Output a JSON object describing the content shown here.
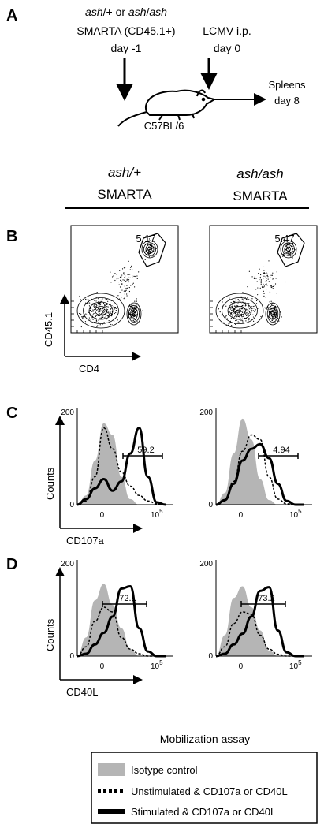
{
  "panel_letters": {
    "a": "A",
    "b": "B",
    "c": "C",
    "d": "D"
  },
  "schematic": {
    "donor_prefix_1": "ash",
    "donor_prefix_2": "/+ or ",
    "donor_prefix_3": "ash",
    "donor_prefix_4": "/",
    "donor_prefix_5": "ash",
    "donor_line2": "SMARTA (CD45.1+)",
    "donor_line3": "day -1",
    "infection_line1": "LCMV i.p.",
    "infection_line2": "day 0",
    "mouse_strain": "C57BL/6",
    "readout_line1": "Spleens",
    "readout_line2": "day 8"
  },
  "columns": [
    {
      "genotype": "ash/+",
      "cell": "SMARTA"
    },
    {
      "genotype": "ash/ash",
      "cell": "SMARTA"
    }
  ],
  "panel_b": {
    "x_axis_label": "CD4",
    "y_axis_label": "CD45.1",
    "gate_values": [
      "5.17",
      "5.47"
    ]
  },
  "panel_c": {
    "x_axis_label": "CD107a",
    "y_axis_label": "Counts",
    "y_tick_top": "200",
    "y_tick_bottom": "0",
    "x_tick_left": "0",
    "x_tick_right": "10",
    "x_tick_right_exp": "5",
    "gate_values": [
      "59.2",
      "4.94"
    ]
  },
  "panel_d": {
    "x_axis_label": "CD40L",
    "y_axis_label": "Counts",
    "y_tick_top": "200",
    "y_tick_bottom": "0",
    "x_tick_left": "0",
    "x_tick_right": "10",
    "x_tick_right_exp": "5",
    "gate_values": [
      "72.1",
      "73.2"
    ]
  },
  "legend": {
    "title": "Mobilization assay",
    "items": [
      {
        "label": "Isotype control",
        "style": "filled",
        "color": "#b5b5b5"
      },
      {
        "label": "Unstimulated & CD107a or CD40L",
        "style": "dashed",
        "color": "#000000"
      },
      {
        "label": "Stimulated & CD107a or CD40L",
        "style": "thick",
        "color": "#000000"
      }
    ]
  },
  "chart_data": [
    {
      "type": "scatter",
      "panel": "B (ash/+ SMARTA)",
      "xlabel": "CD4",
      "ylabel": "CD45.1",
      "annotations": [
        "5.17"
      ],
      "gated_percent": 5.17
    },
    {
      "type": "scatter",
      "panel": "B (ash/ash SMARTA)",
      "xlabel": "CD4",
      "ylabel": "CD45.1",
      "annotations": [
        "5.47"
      ],
      "gated_percent": 5.47
    },
    {
      "type": "line",
      "panel": "C (ash/+ SMARTA)",
      "xlabel": "CD107a",
      "ylabel": "Counts",
      "ylim": [
        0,
        200
      ],
      "x_ticks": [
        "0",
        "10^5"
      ],
      "gate_percent": 59.2,
      "series": [
        {
          "name": "Isotype control",
          "values": [
            0,
            20,
            95,
            175,
            150,
            60,
            12,
            0,
            0,
            0,
            0
          ]
        },
        {
          "name": "Unstimulated & CD107a or CD40L",
          "values": [
            0,
            8,
            60,
            165,
            120,
            70,
            40,
            20,
            8,
            2,
            0
          ]
        },
        {
          "name": "Stimulated & CD107a or CD40L",
          "values": [
            0,
            12,
            35,
            55,
            30,
            50,
            110,
            165,
            60,
            5,
            0
          ]
        }
      ]
    },
    {
      "type": "line",
      "panel": "C (ash/ash SMARTA)",
      "xlabel": "CD107a",
      "ylabel": "Counts",
      "ylim": [
        0,
        200
      ],
      "x_ticks": [
        "0",
        "10^5"
      ],
      "gate_percent": 4.94,
      "series": [
        {
          "name": "Isotype control",
          "values": [
            0,
            25,
            110,
            185,
            140,
            55,
            10,
            0,
            0,
            0,
            0
          ]
        },
        {
          "name": "Unstimulated & CD107a or CD40L",
          "values": [
            0,
            8,
            50,
            115,
            150,
            140,
            60,
            12,
            2,
            0,
            0
          ]
        },
        {
          "name": "Stimulated & CD107a or CD40L",
          "values": [
            0,
            10,
            45,
            95,
            120,
            130,
            100,
            45,
            8,
            0,
            0
          ]
        }
      ]
    },
    {
      "type": "line",
      "panel": "D (ash/+ SMARTA)",
      "xlabel": "CD40L",
      "ylabel": "Counts",
      "ylim": [
        0,
        200
      ],
      "x_ticks": [
        "0",
        "10^5"
      ],
      "gate_percent": 72.1,
      "series": [
        {
          "name": "Isotype control",
          "values": [
            0,
            40,
            120,
            155,
            110,
            60,
            15,
            0,
            0,
            0,
            0
          ]
        },
        {
          "name": "Unstimulated & CD107a or CD40L",
          "values": [
            0,
            20,
            75,
            105,
            95,
            40,
            15,
            5,
            0,
            0,
            0
          ]
        },
        {
          "name": "Stimulated & CD107a or CD40L",
          "values": [
            0,
            5,
            25,
            50,
            85,
            145,
            150,
            60,
            10,
            0,
            0
          ]
        }
      ]
    },
    {
      "type": "line",
      "panel": "D (ash/ash SMARTA)",
      "xlabel": "CD40L",
      "ylabel": "Counts",
      "ylim": [
        0,
        200
      ],
      "x_ticks": [
        "0",
        "10^5"
      ],
      "gate_percent": 73.2,
      "series": [
        {
          "name": "Isotype control",
          "values": [
            0,
            45,
            125,
            150,
            105,
            55,
            12,
            0,
            0,
            0,
            0
          ]
        },
        {
          "name": "Unstimulated & CD107a or CD40L",
          "values": [
            0,
            20,
            70,
            95,
            90,
            45,
            15,
            4,
            0,
            0,
            0
          ]
        },
        {
          "name": "Stimulated & CD107a or CD40L",
          "values": [
            0,
            5,
            25,
            48,
            85,
            140,
            148,
            55,
            8,
            0,
            0
          ]
        }
      ]
    }
  ]
}
